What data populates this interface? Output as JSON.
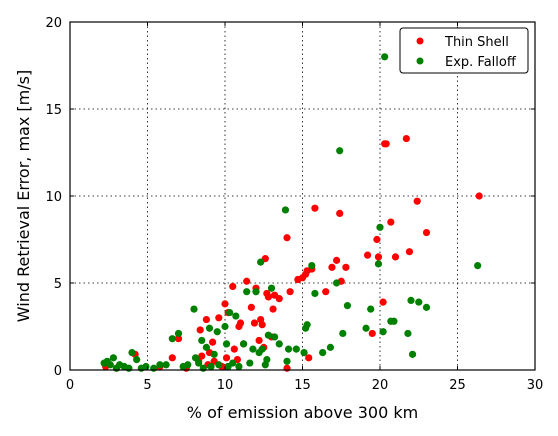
{
  "chart_data": {
    "type": "scatter",
    "xlabel": "% of emission above 300 km",
    "ylabel": "Wind Retrieval Error, max [m/s]",
    "xlim": [
      0,
      30
    ],
    "ylim": [
      0,
      20
    ],
    "xticks": [
      "0",
      "5",
      "10",
      "15",
      "20",
      "25",
      "30"
    ],
    "yticks": [
      "0",
      "5",
      "10",
      "15",
      "20"
    ],
    "grid": true,
    "legend_position": "top-right",
    "series": [
      {
        "name": "Thin Shell",
        "color": "#ff0000",
        "points": [
          [
            2.3,
            0.2
          ],
          [
            3.0,
            0.1
          ],
          [
            4.2,
            0.9
          ],
          [
            5.8,
            0.2
          ],
          [
            6.6,
            0.7
          ],
          [
            7.0,
            1.8
          ],
          [
            7.5,
            0.1
          ],
          [
            8.3,
            0.5
          ],
          [
            8.4,
            2.3
          ],
          [
            8.5,
            0.8
          ],
          [
            8.8,
            2.9
          ],
          [
            8.9,
            0.3
          ],
          [
            9.0,
            1.0
          ],
          [
            9.2,
            1.6
          ],
          [
            9.3,
            0.5
          ],
          [
            9.6,
            3.0
          ],
          [
            9.8,
            0.2
          ],
          [
            10.0,
            3.8
          ],
          [
            10.1,
            0.7
          ],
          [
            10.2,
            3.3
          ],
          [
            10.5,
            4.8
          ],
          [
            10.6,
            1.2
          ],
          [
            10.8,
            0.6
          ],
          [
            10.9,
            2.5
          ],
          [
            11.0,
            2.7
          ],
          [
            11.2,
            1.5
          ],
          [
            11.4,
            5.1
          ],
          [
            11.7,
            3.6
          ],
          [
            11.9,
            2.7
          ],
          [
            12.0,
            4.7
          ],
          [
            12.2,
            1.7
          ],
          [
            12.3,
            2.9
          ],
          [
            12.4,
            2.6
          ],
          [
            12.5,
            1.3
          ],
          [
            12.6,
            6.4
          ],
          [
            12.7,
            4.4
          ],
          [
            12.8,
            4.2
          ],
          [
            13.0,
            1.9
          ],
          [
            13.1,
            3.5
          ],
          [
            13.2,
            4.3
          ],
          [
            13.5,
            4.1
          ],
          [
            14.0,
            7.6
          ],
          [
            14.0,
            0.1
          ],
          [
            14.2,
            4.5
          ],
          [
            14.7,
            5.2
          ],
          [
            15.0,
            5.3
          ],
          [
            15.2,
            5.5
          ],
          [
            15.3,
            5.7
          ],
          [
            15.4,
            0.7
          ],
          [
            15.6,
            5.8
          ],
          [
            15.8,
            9.3
          ],
          [
            16.5,
            4.5
          ],
          [
            16.9,
            5.9
          ],
          [
            17.2,
            6.3
          ],
          [
            17.4,
            9.0
          ],
          [
            17.5,
            5.1
          ],
          [
            17.8,
            5.9
          ],
          [
            19.2,
            6.6
          ],
          [
            19.5,
            2.1
          ],
          [
            19.8,
            7.5
          ],
          [
            19.9,
            6.5
          ],
          [
            20.2,
            3.9
          ],
          [
            20.3,
            13.0
          ],
          [
            20.4,
            13.0
          ],
          [
            20.7,
            8.5
          ],
          [
            21.0,
            6.5
          ],
          [
            21.7,
            13.3
          ],
          [
            21.9,
            6.8
          ],
          [
            22.4,
            9.7
          ],
          [
            23.0,
            7.9
          ],
          [
            26.4,
            10.0
          ]
        ]
      },
      {
        "name": "Exp. Falloff",
        "color": "#008000",
        "points": [
          [
            2.2,
            0.4
          ],
          [
            2.4,
            0.5
          ],
          [
            2.6,
            0.3
          ],
          [
            2.8,
            0.7
          ],
          [
            3.0,
            0.1
          ],
          [
            3.2,
            0.3
          ],
          [
            3.5,
            0.2
          ],
          [
            3.8,
            0.1
          ],
          [
            4.0,
            1.0
          ],
          [
            4.3,
            0.6
          ],
          [
            4.6,
            0.1
          ],
          [
            4.9,
            0.2
          ],
          [
            5.4,
            0.1
          ],
          [
            5.8,
            0.3
          ],
          [
            6.2,
            0.3
          ],
          [
            6.6,
            1.8
          ],
          [
            7.0,
            2.1
          ],
          [
            7.3,
            0.2
          ],
          [
            7.6,
            0.3
          ],
          [
            8.0,
            3.5
          ],
          [
            8.1,
            0.7
          ],
          [
            8.3,
            0.4
          ],
          [
            8.5,
            1.7
          ],
          [
            8.6,
            0.1
          ],
          [
            8.8,
            1.3
          ],
          [
            9.0,
            2.4
          ],
          [
            9.1,
            0.2
          ],
          [
            9.3,
            0.9
          ],
          [
            9.5,
            2.2
          ],
          [
            9.6,
            0.3
          ],
          [
            10.0,
            2.5
          ],
          [
            10.1,
            1.5
          ],
          [
            10.2,
            0.2
          ],
          [
            10.3,
            3.3
          ],
          [
            10.5,
            0.4
          ],
          [
            10.7,
            3.1
          ],
          [
            10.9,
            0.2
          ],
          [
            11.2,
            1.5
          ],
          [
            11.4,
            4.5
          ],
          [
            11.6,
            0.4
          ],
          [
            11.8,
            1.2
          ],
          [
            12.0,
            4.5
          ],
          [
            12.2,
            1.0
          ],
          [
            12.3,
            6.2
          ],
          [
            12.4,
            1.2
          ],
          [
            12.6,
            0.3
          ],
          [
            12.7,
            0.6
          ],
          [
            12.8,
            2.0
          ],
          [
            13.0,
            4.7
          ],
          [
            13.2,
            1.9
          ],
          [
            13.5,
            1.5
          ],
          [
            13.9,
            9.2
          ],
          [
            14.0,
            0.5
          ],
          [
            14.1,
            1.2
          ],
          [
            14.6,
            1.2
          ],
          [
            15.1,
            1.0
          ],
          [
            15.2,
            2.4
          ],
          [
            15.3,
            2.6
          ],
          [
            15.6,
            6.0
          ],
          [
            15.8,
            4.4
          ],
          [
            16.3,
            1.0
          ],
          [
            16.8,
            1.3
          ],
          [
            17.2,
            5.0
          ],
          [
            17.4,
            12.6
          ],
          [
            17.6,
            2.1
          ],
          [
            17.9,
            3.7
          ],
          [
            19.1,
            2.4
          ],
          [
            19.4,
            3.5
          ],
          [
            19.9,
            6.1
          ],
          [
            20.0,
            8.2
          ],
          [
            20.2,
            2.2
          ],
          [
            20.3,
            18.0
          ],
          [
            20.7,
            2.8
          ],
          [
            20.9,
            2.8
          ],
          [
            21.8,
            2.1
          ],
          [
            22.0,
            4.0
          ],
          [
            22.1,
            0.9
          ],
          [
            22.5,
            3.9
          ],
          [
            23.0,
            3.6
          ],
          [
            26.3,
            6.0
          ]
        ]
      }
    ]
  }
}
